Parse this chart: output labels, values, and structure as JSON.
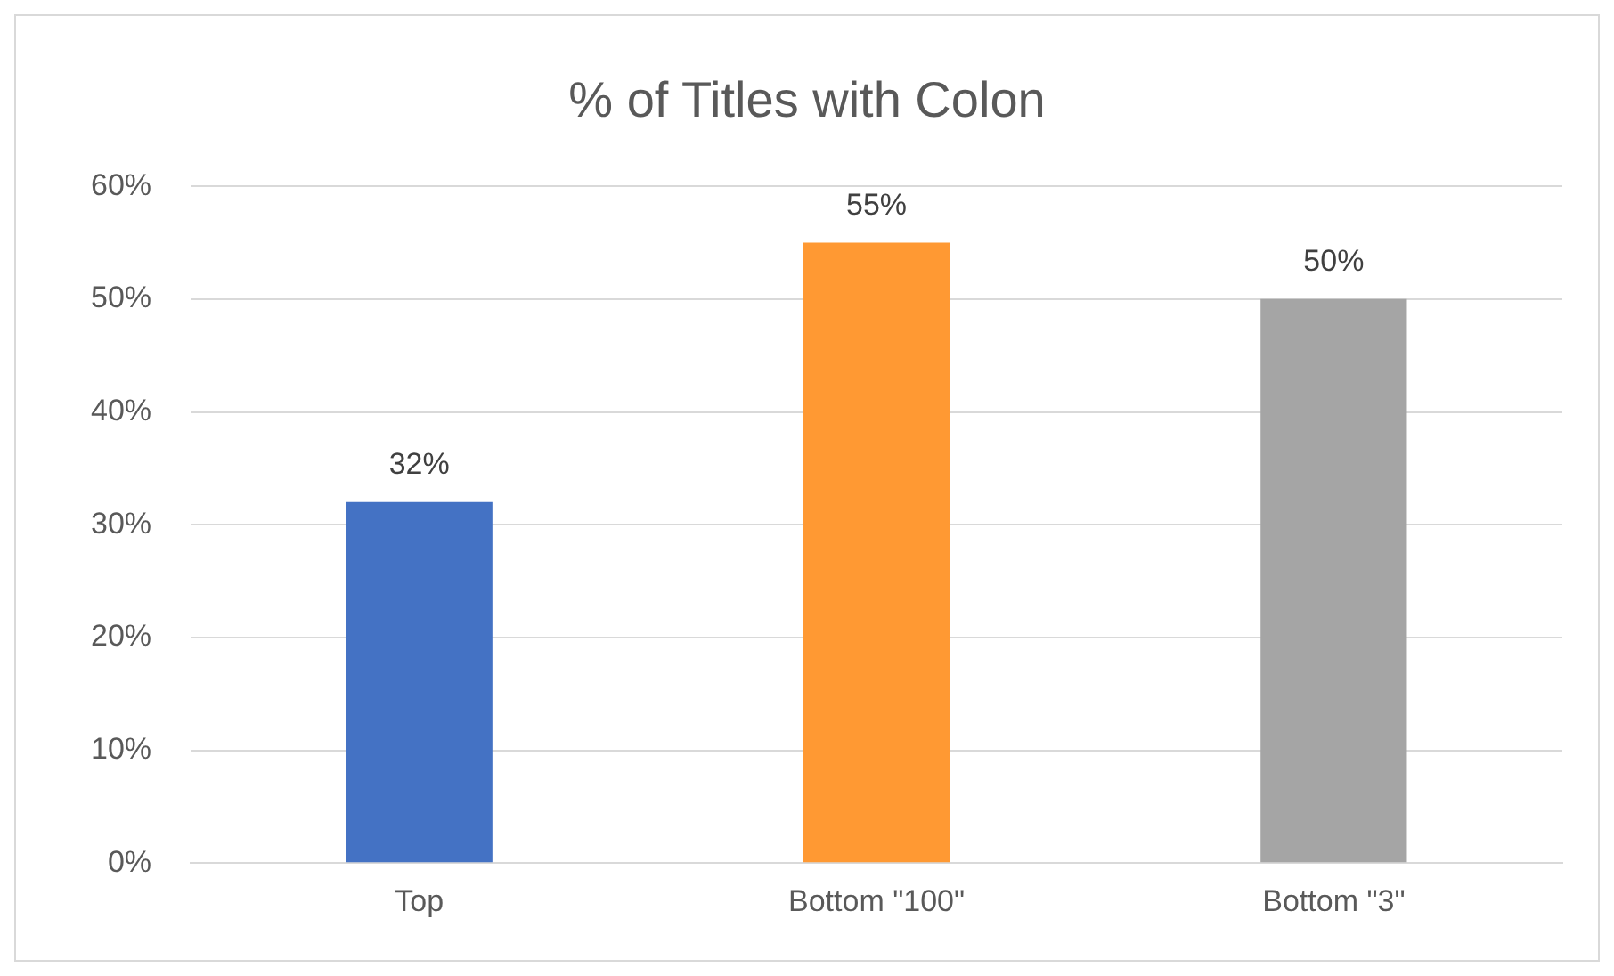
{
  "chart_data": {
    "type": "bar",
    "title": "% of Titles with Colon",
    "categories": [
      "Top",
      "Bottom \"100\"",
      "Bottom \"3\""
    ],
    "values": [
      32,
      55,
      50
    ],
    "colors": [
      "#4472c4",
      "#ff9933",
      "#a5a5a5"
    ],
    "value_labels": [
      "32%",
      "55%",
      "50%"
    ],
    "ylim": [
      0,
      60
    ],
    "yticks": [
      {
        "value": 0,
        "label": "0%"
      },
      {
        "value": 10,
        "label": "10%"
      },
      {
        "value": 20,
        "label": "20%"
      },
      {
        "value": 30,
        "label": "30%"
      },
      {
        "value": 40,
        "label": "40%"
      },
      {
        "value": 50,
        "label": "50%"
      },
      {
        "value": 60,
        "label": "60%"
      }
    ],
    "grid": "y",
    "legend": false
  }
}
